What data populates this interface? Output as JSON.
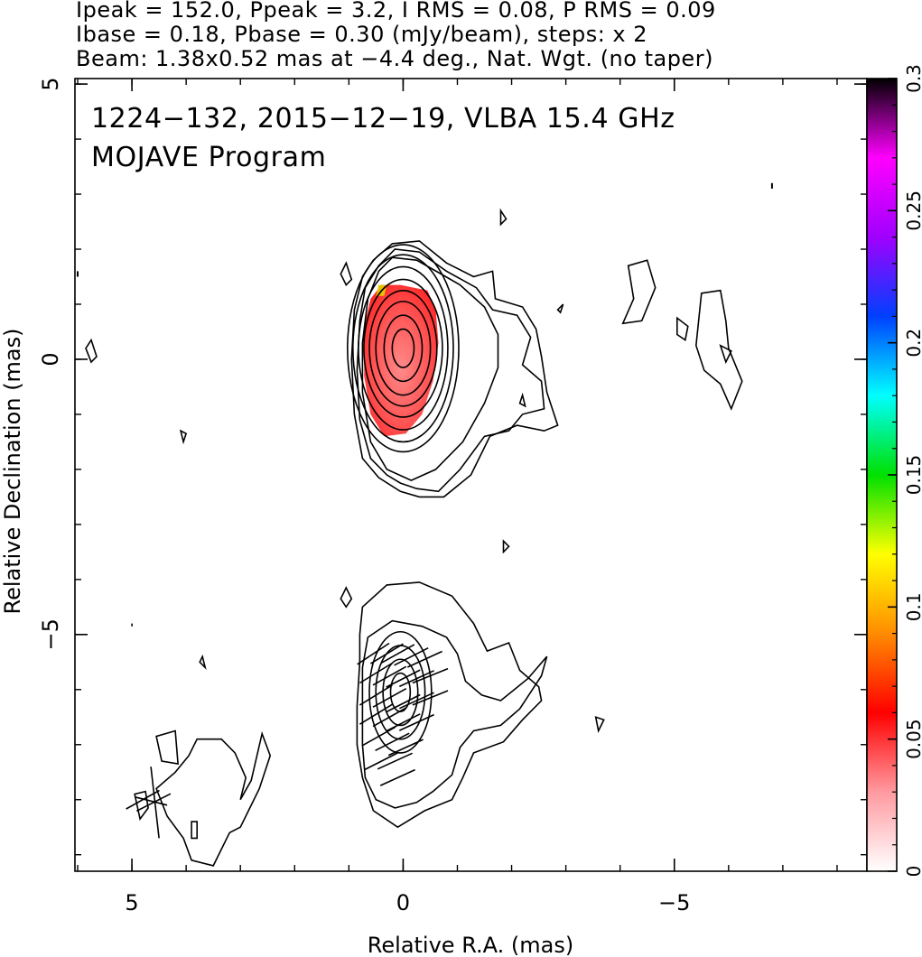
{
  "chart_data": {
    "type": "contour",
    "header_lines": [
      "Ipeak = 152.0, Ppeak = 3.2, I RMS = 0.08, P RMS = 0.09",
      "Ibase = 0.18, Pbase = 0.30 (mJy/beam), steps: x 2",
      "Beam: 1.38x0.52 mas at −4.4 deg., Nat. Wgt. (no taper)"
    ],
    "title_lines": [
      "1224−132, 2015−12−19, VLBA 15.4 GHz",
      "MOJAVE Program"
    ],
    "xlabel": "Relative R.A. (mas)",
    "ylabel": "Relative Declination (mas)",
    "xlim": [
      6.05,
      -8.55
    ],
    "ylim": [
      -9.3,
      5.1
    ],
    "x_ticks": [
      {
        "value": 5,
        "label": "5"
      },
      {
        "value": 0,
        "label": "0"
      },
      {
        "value": -5,
        "label": "−5"
      }
    ],
    "y_ticks": [
      {
        "value": 5,
        "label": "5"
      },
      {
        "value": 0,
        "label": "0"
      },
      {
        "value": -5,
        "label": "−5"
      }
    ],
    "colorbar": {
      "range": [
        0,
        0.3
      ],
      "ticks": [
        {
          "value": 0,
          "label": "0"
        },
        {
          "value": 0.05,
          "label": "0.05"
        },
        {
          "value": 0.1,
          "label": "0.1"
        },
        {
          "value": 0.15,
          "label": "0.15"
        },
        {
          "value": 0.2,
          "label": "0.2"
        },
        {
          "value": 0.25,
          "label": "0.25"
        },
        {
          "value": 0.3,
          "label": "0.3"
        }
      ],
      "colors": [
        "#ffffff",
        "#ff9aa0",
        "#ff0000",
        "#ff8c00",
        "#ffff00",
        "#00e000",
        "#00ffff",
        "#0040ff",
        "#a000ff",
        "#ff00ff",
        "#000000"
      ]
    },
    "upper_panel": {
      "peak_center": [
        0.0,
        0.2
      ],
      "contour_radii": [
        [
          0.2,
          0.35
        ],
        [
          0.35,
          0.6
        ],
        [
          0.5,
          0.85
        ],
        [
          0.62,
          1.05
        ],
        [
          0.72,
          1.25
        ],
        [
          0.82,
          1.48
        ],
        [
          0.92,
          1.7
        ],
        [
          1.02,
          1.88
        ]
      ],
      "outer_contours": [
        [
          [
            0.45,
            1.6
          ],
          [
            0.2,
            1.85
          ],
          [
            -0.25,
            1.8
          ],
          [
            -0.7,
            1.55
          ],
          [
            -1.05,
            1.35
          ],
          [
            -1.5,
            0.95
          ],
          [
            -1.75,
            0.45
          ],
          [
            -1.75,
            -0.15
          ],
          [
            -1.5,
            -0.8
          ],
          [
            -1.1,
            -1.5
          ],
          [
            -0.6,
            -2.0
          ],
          [
            -0.15,
            -2.2
          ],
          [
            0.3,
            -2.0
          ],
          [
            0.6,
            -1.5
          ],
          [
            0.75,
            -0.6
          ],
          [
            0.75,
            0.3
          ],
          [
            0.65,
            1.1
          ]
        ],
        [
          [
            0.45,
            1.7
          ],
          [
            0.15,
            2.0
          ],
          [
            -0.3,
            1.95
          ],
          [
            -0.8,
            1.6
          ],
          [
            -1.35,
            1.3
          ],
          [
            -1.65,
            0.9
          ],
          [
            -2.1,
            0.8
          ],
          [
            -2.35,
            0.4
          ],
          [
            -2.2,
            -0.1
          ],
          [
            -2.55,
            -0.4
          ],
          [
            -2.6,
            -0.9
          ],
          [
            -2.2,
            -1.0
          ],
          [
            -1.95,
            -1.3
          ],
          [
            -1.5,
            -1.4
          ],
          [
            -1.05,
            -2.0
          ],
          [
            -0.65,
            -2.4
          ],
          [
            -0.25,
            -2.35
          ],
          [
            0.05,
            -2.25
          ],
          [
            0.3,
            -2.1
          ],
          [
            0.6,
            -1.8
          ],
          [
            0.8,
            -1.1
          ],
          [
            0.85,
            -0.2
          ],
          [
            0.8,
            0.7
          ],
          [
            0.7,
            1.3
          ]
        ],
        [
          [
            0.55,
            1.8
          ],
          [
            0.2,
            2.1
          ],
          [
            -0.3,
            2.15
          ],
          [
            -0.8,
            1.75
          ],
          [
            -1.3,
            1.5
          ],
          [
            -1.65,
            1.6
          ],
          [
            -1.7,
            1.1
          ],
          [
            -2.2,
            0.95
          ],
          [
            -2.45,
            0.55
          ],
          [
            -2.55,
            0.05
          ],
          [
            -2.65,
            -0.6
          ],
          [
            -2.85,
            -1.2
          ],
          [
            -2.6,
            -1.3
          ],
          [
            -2.1,
            -1.2
          ],
          [
            -1.6,
            -1.4
          ],
          [
            -1.25,
            -2.1
          ],
          [
            -0.75,
            -2.5
          ],
          [
            -0.3,
            -2.5
          ],
          [
            0.05,
            -2.4
          ],
          [
            0.45,
            -2.15
          ],
          [
            0.75,
            -1.8
          ],
          [
            0.9,
            -1.0
          ],
          [
            0.95,
            0.0
          ],
          [
            0.9,
            0.9
          ],
          [
            0.75,
            1.5
          ]
        ]
      ],
      "islands": [
        [
          [
            1.05,
            1.75
          ],
          [
            0.95,
            1.45
          ],
          [
            1.05,
            1.35
          ],
          [
            1.15,
            1.55
          ]
        ],
        [
          [
            -1.8,
            2.7
          ],
          [
            -1.8,
            2.45
          ],
          [
            -1.9,
            2.55
          ]
        ],
        [
          [
            -2.95,
            1.0
          ],
          [
            -2.9,
            0.85
          ],
          [
            -2.85,
            0.9
          ]
        ],
        [
          [
            -2.2,
            -0.65
          ],
          [
            -2.25,
            -0.85
          ],
          [
            -2.15,
            -0.8
          ]
        ],
        [
          [
            5.75,
            0.35
          ],
          [
            5.65,
            0.05
          ],
          [
            5.75,
            -0.05
          ],
          [
            5.85,
            0.2
          ]
        ],
        [
          [
            4.1,
            -1.3
          ],
          [
            4.05,
            -1.5
          ],
          [
            4.0,
            -1.35
          ]
        ],
        [
          [
            -4.15,
            1.7
          ],
          [
            -4.5,
            1.8
          ],
          [
            -4.65,
            1.3
          ],
          [
            -4.4,
            0.7
          ],
          [
            -4.05,
            0.65
          ],
          [
            -4.25,
            1.1
          ]
        ],
        [
          [
            -5.05,
            0.75
          ],
          [
            -5.25,
            0.6
          ],
          [
            -5.2,
            0.35
          ],
          [
            -5.05,
            0.45
          ]
        ],
        [
          [
            -5.85,
            0.25
          ],
          [
            -6.05,
            0.15
          ],
          [
            -5.95,
            -0.05
          ]
        ],
        [
          [
            -5.5,
            1.2
          ],
          [
            -5.85,
            1.25
          ],
          [
            -5.95,
            0.7
          ],
          [
            -6.0,
            0.2
          ],
          [
            -6.25,
            -0.4
          ],
          [
            -6.05,
            -0.9
          ],
          [
            -5.85,
            -0.45
          ],
          [
            -5.55,
            -0.2
          ],
          [
            -5.4,
            0.25
          ]
        ]
      ]
    },
    "lower_panel": {
      "peak_center": [
        0.05,
        -6.05
      ],
      "ticks_marks": [
        [
          0.55,
          -5.35,
          -0.65
        ],
        [
          0.3,
          -5.35,
          -0.6
        ],
        [
          0.1,
          -5.35,
          -0.55
        ],
        [
          -0.15,
          -5.4,
          -0.5
        ],
        [
          -0.4,
          -5.45,
          -0.45
        ],
        [
          0.5,
          -5.7,
          -0.6
        ],
        [
          0.25,
          -5.75,
          -0.55
        ],
        [
          0.0,
          -5.8,
          -0.5
        ],
        [
          -0.25,
          -5.8,
          -0.45
        ],
        [
          -0.5,
          -5.75,
          -0.4
        ],
        [
          0.5,
          -6.1,
          -0.6
        ],
        [
          0.25,
          -6.15,
          -0.55
        ],
        [
          0.0,
          -6.25,
          -0.5
        ],
        [
          -0.25,
          -6.2,
          -0.45
        ],
        [
          -0.5,
          -6.15,
          -0.4
        ],
        [
          0.5,
          -6.45,
          -0.6
        ],
        [
          0.25,
          -6.5,
          -0.55
        ],
        [
          0.0,
          -6.6,
          -0.5
        ],
        [
          -0.25,
          -6.6,
          -0.45
        ],
        [
          0.45,
          -6.85,
          -0.55
        ],
        [
          0.2,
          -6.95,
          -0.5
        ],
        [
          -0.05,
          -7.05,
          -0.45
        ],
        [
          0.4,
          -7.3,
          -0.5
        ],
        [
          0.15,
          -7.3,
          -0.45
        ],
        [
          0.1,
          -7.6,
          -0.45
        ],
        [
          4.8,
          -8.0,
          -0.55
        ],
        [
          4.6,
          -8.05,
          -0.5
        ]
      ]
    }
  }
}
